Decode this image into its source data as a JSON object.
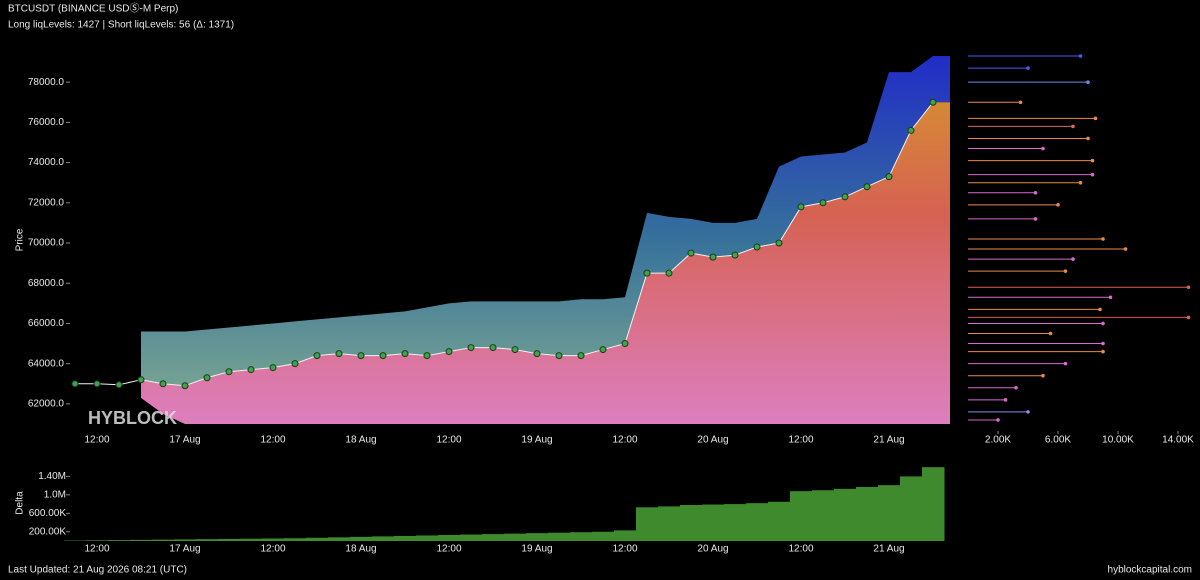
{
  "chart_data": [
    {
      "type": "line",
      "title": "BTCUSDT (BINANCE USDⓈ-M Perp)",
      "subtitle": "Long liqLevels: 1427 | Short liqLevels: 56 (Δ: 1371)",
      "ylabel": "Price",
      "watermark": "HYBLOCK",
      "categories": [
        null,
        "12:00",
        null,
        null,
        null,
        "17 Aug",
        null,
        null,
        null,
        "12:00",
        null,
        null,
        null,
        "18 Aug",
        null,
        null,
        null,
        "12:00",
        null,
        null,
        null,
        "19 Aug",
        null,
        null,
        null,
        "12:00",
        null,
        null,
        null,
        "20 Aug",
        null,
        null,
        null,
        "12:00",
        null,
        null,
        null,
        "21 Aug",
        null,
        null
      ],
      "series": [
        {
          "type": "line",
          "color": "#3fa34d",
          "values": [
            63000,
            63000,
            62950,
            63200,
            63000,
            62900,
            63300,
            63600,
            63700,
            63800,
            64000,
            64400,
            64500,
            64400,
            64400,
            64500,
            64400,
            64600,
            64800,
            64800,
            64700,
            64500,
            64400,
            64400,
            64700,
            65000,
            68500,
            68500,
            69500,
            69300,
            69400,
            69800,
            70000,
            71800,
            72000,
            72300,
            72800,
            73300,
            75600,
            77000
          ]
        },
        {
          "type": "area",
          "color": "#2430d8",
          "values": [
            null,
            null,
            null,
            65600,
            65600,
            65600,
            65700,
            65800,
            65900,
            66000,
            66100,
            66200,
            66300,
            66400,
            66500,
            66600,
            66800,
            67000,
            67100,
            67100,
            67100,
            67100,
            67100,
            67200,
            67200,
            67300,
            71500,
            71300,
            71200,
            71000,
            71000,
            71200,
            73800,
            74300,
            74400,
            74500,
            75000,
            78500,
            78500,
            79300
          ]
        },
        {
          "type": "area",
          "color": "#f08ad0",
          "values": [
            null,
            null,
            null,
            62300,
            61500,
            61000,
            61000,
            61000,
            61000,
            61000,
            61000,
            61000,
            61000,
            61000,
            61000,
            61000,
            61000,
            61000,
            61000,
            61000,
            61000,
            61000,
            61000,
            61000,
            61000,
            61000,
            61000,
            61000,
            61000,
            61000,
            61000,
            61000,
            61000,
            61000,
            61000,
            61000,
            61000,
            61000,
            61000,
            61000
          ]
        }
      ],
      "ylim": [
        60700,
        79600
      ],
      "yticks": [
        {
          "value": 62000,
          "label": "62000.0"
        },
        {
          "value": 64000,
          "label": "64000.0"
        },
        {
          "value": 66000,
          "label": "66000.0"
        },
        {
          "value": 68000,
          "label": "68000.0"
        },
        {
          "value": 70000,
          "label": "70000.0"
        },
        {
          "value": 72000,
          "label": "72000.0"
        },
        {
          "value": 74000,
          "label": "74000.0"
        },
        {
          "value": 76000,
          "label": "76000.0"
        },
        {
          "value": 78000,
          "label": "78000.0"
        }
      ]
    },
    {
      "type": "hbar",
      "y": [
        79300,
        78700,
        78000,
        77000,
        76200,
        75800,
        75200,
        74700,
        74100,
        73400,
        73000,
        72500,
        71900,
        71200,
        70200,
        69700,
        69200,
        68600,
        67800,
        67300,
        66700,
        66300,
        66000,
        65500,
        65000,
        64600,
        64000,
        63400,
        62800,
        62200,
        61600,
        61200
      ],
      "values": [
        7500,
        4000,
        8000,
        3500,
        8500,
        7000,
        8000,
        5000,
        8300,
        8300,
        7500,
        4500,
        6000,
        4500,
        9000,
        10500,
        7000,
        6500,
        14700,
        9500,
        8800,
        14700,
        9000,
        5500,
        9000,
        9000,
        6500,
        5000,
        3200,
        2500,
        4000,
        2000
      ],
      "colors": [
        "#4a5cf0",
        "#4a5cf0",
        "#6a8cf0",
        "#e98a4a",
        "#e98a4a",
        "#d86a6a",
        "#e98a4a",
        "#d86ad0",
        "#e98a4a",
        "#d86ad0",
        "#e98a4a",
        "#d86ad0",
        "#e98a4a",
        "#d86ad0",
        "#e98a4a",
        "#e98a4a",
        "#d86ad0",
        "#e98a4a",
        "#e0604a",
        "#d86ad0",
        "#e98a4a",
        "#e0604a",
        "#d86ad0",
        "#e98a4a",
        "#d86ad0",
        "#e98a4a",
        "#d86ad0",
        "#e98a4a",
        "#d86ad0",
        "#d86ad0",
        "#8a8af0",
        "#d86ad0"
      ],
      "ylim": [
        60700,
        79600
      ],
      "xlim": [
        0,
        14800
      ],
      "xticks": [
        {
          "value": 2000,
          "label": "2.00K"
        },
        {
          "value": 6000,
          "label": "6.00K"
        },
        {
          "value": 10000,
          "label": "10.00K"
        },
        {
          "value": 14000,
          "label": "14.00K"
        }
      ]
    },
    {
      "type": "bar",
      "ylabel": "Delta",
      "color": "#3f8a2c",
      "categories": [
        null,
        "12:00",
        null,
        null,
        null,
        "17 Aug",
        null,
        null,
        null,
        "12:00",
        null,
        null,
        null,
        "18 Aug",
        null,
        null,
        null,
        "12:00",
        null,
        null,
        null,
        "19 Aug",
        null,
        null,
        null,
        "12:00",
        null,
        null,
        null,
        "20 Aug",
        null,
        null,
        null,
        "12:00",
        null,
        null,
        null,
        "21 Aug",
        null,
        null
      ],
      "values": [
        10000,
        15000,
        20000,
        25000,
        30000,
        35000,
        40000,
        45000,
        50000,
        55000,
        60000,
        70000,
        80000,
        90000,
        100000,
        110000,
        120000,
        130000,
        140000,
        150000,
        160000,
        170000,
        180000,
        190000,
        200000,
        230000,
        730000,
        750000,
        780000,
        790000,
        800000,
        820000,
        850000,
        1080000,
        1100000,
        1130000,
        1170000,
        1210000,
        1400000,
        1600000
      ],
      "ylim": [
        0,
        1690000
      ],
      "yticks": [
        {
          "value": 200000,
          "label": "200.00K"
        },
        {
          "value": 600000,
          "label": "600.00K"
        },
        {
          "value": 1000000,
          "label": "1.0M"
        },
        {
          "value": 1400000,
          "label": "1.40M"
        }
      ]
    }
  ],
  "footer": {
    "updated": "Last Updated: 21 Aug 2026 08:21 (UTC)",
    "site": "hyblockcapital.com"
  }
}
